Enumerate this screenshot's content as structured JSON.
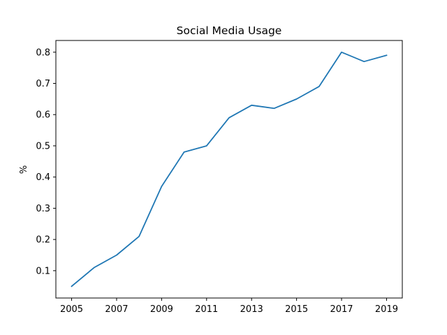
{
  "chart_data": {
    "type": "line",
    "title": "Social Media Usage",
    "xlabel": "",
    "ylabel": "%",
    "x": [
      2005,
      2006,
      2007,
      2008,
      2009,
      2010,
      2011,
      2012,
      2013,
      2014,
      2015,
      2016,
      2017,
      2018,
      2019
    ],
    "series": [
      {
        "values": [
          0.05,
          0.11,
          0.15,
          0.21,
          0.37,
          0.48,
          0.5,
          0.59,
          0.63,
          0.62,
          0.65,
          0.69,
          0.8,
          0.77,
          0.79
        ],
        "color": "#1f77b4"
      }
    ],
    "xticks": [
      "2005",
      "2007",
      "2009",
      "2011",
      "2013",
      "2015",
      "2017",
      "2019"
    ],
    "yticks": [
      "0.1",
      "0.2",
      "0.3",
      "0.4",
      "0.5",
      "0.6",
      "0.7",
      "0.8"
    ],
    "xlim": [
      2004.3,
      2019.7
    ],
    "ylim": [
      0.0125,
      0.8375
    ],
    "grid": false,
    "legend": false
  }
}
